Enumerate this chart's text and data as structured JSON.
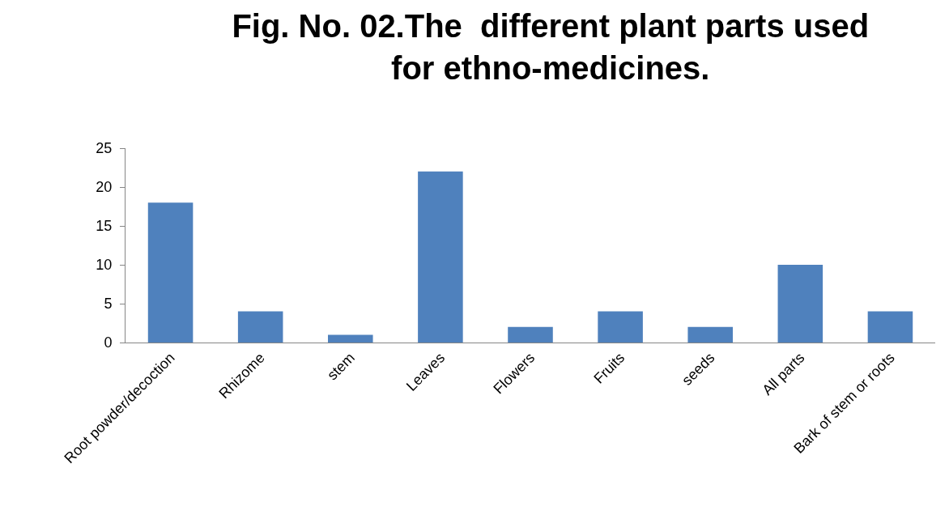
{
  "chart_data": {
    "type": "bar",
    "title": "Fig. No. 02.The  different plant parts used for ethno-medicines.",
    "categories": [
      "Root powder/decoction",
      "Rhizome",
      "stem",
      "Leaves",
      "Flowers",
      "Fruits",
      "seeds",
      "All parts",
      "Bark of stem or roots"
    ],
    "values": [
      18,
      4,
      1,
      22,
      2,
      4,
      2,
      10,
      4
    ],
    "color": "#4f81bd",
    "ylim": [
      0,
      25
    ],
    "yticks": [
      0,
      5,
      10,
      15,
      20,
      25
    ],
    "grid": false
  }
}
